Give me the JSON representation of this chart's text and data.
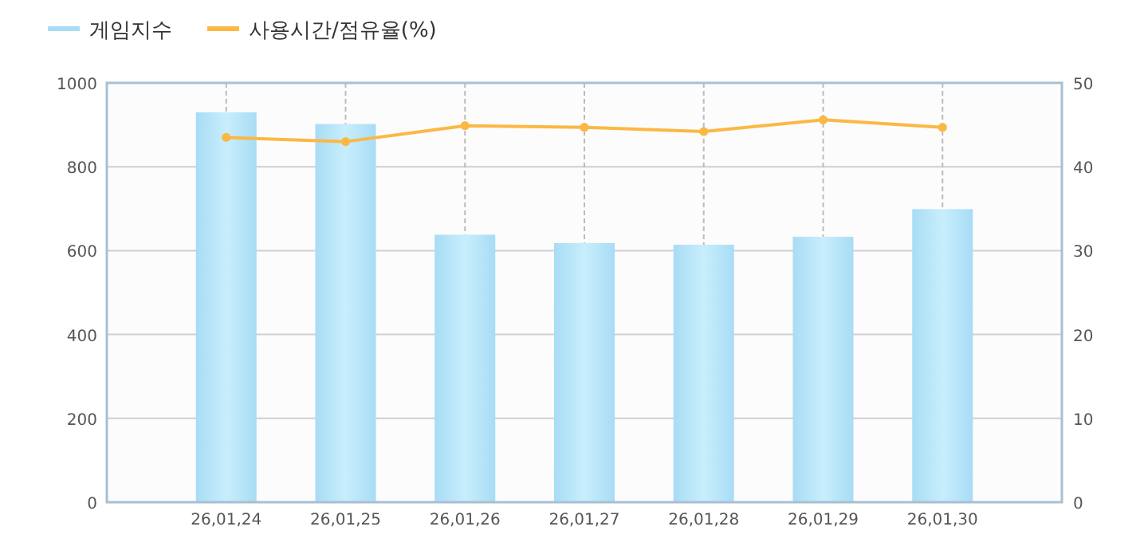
{
  "chart_data": {
    "type": "bar",
    "categories": [
      "26,01,24",
      "26,01,25",
      "26,01,26",
      "26,01,27",
      "26,01,28",
      "26,01,29",
      "26,01,30"
    ],
    "series": [
      {
        "name": "게임지수",
        "color": "#a8dcf5",
        "values": [
          930,
          902,
          638,
          618,
          614,
          633,
          699
        ]
      },
      {
        "name": "사용시간/점유율(%)",
        "type": "line",
        "axis": "y2",
        "color": "#fbb845",
        "marker": "circle",
        "values": [
          43.5,
          43.0,
          44.9,
          44.7,
          44.2,
          45.6,
          44.7
        ]
      }
    ],
    "ylim": [
      0,
      1000
    ],
    "yticks": [
      0,
      200,
      400,
      600,
      800,
      1000
    ],
    "y2lim": [
      0,
      50
    ],
    "y2ticks": [
      0,
      10,
      20,
      30,
      40,
      50
    ],
    "grid": true,
    "legend": "top left"
  }
}
